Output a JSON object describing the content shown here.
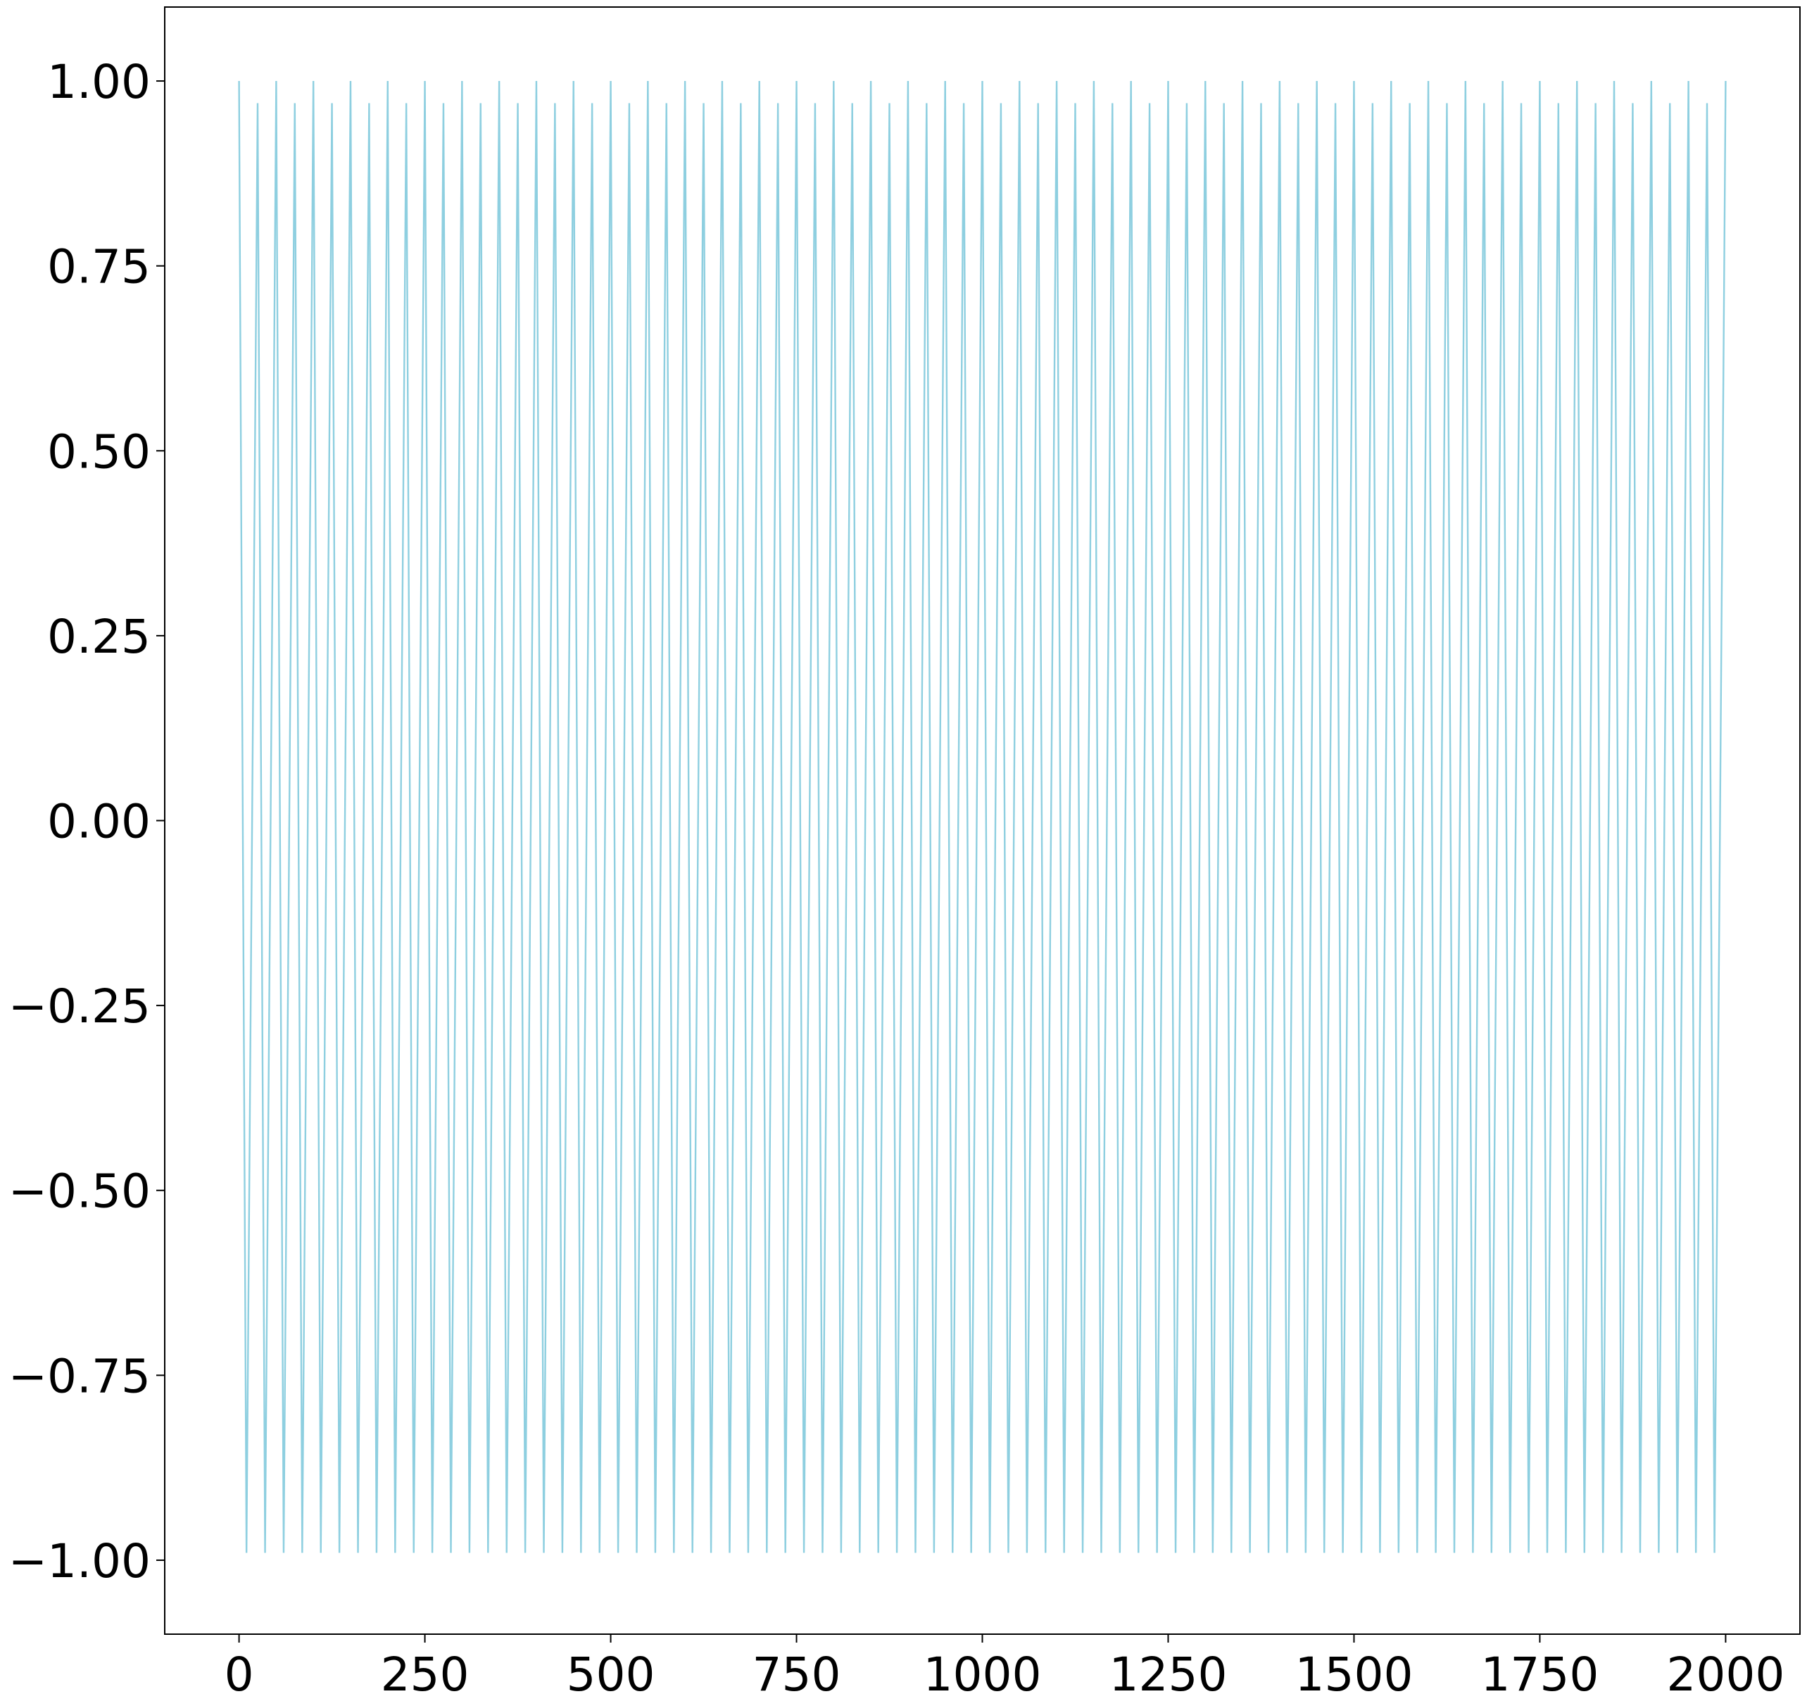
{
  "chart_data": {
    "type": "line",
    "title": "",
    "xlabel": "",
    "ylabel": "",
    "xlim": [
      -100,
      2100
    ],
    "ylim": [
      -1.1,
      1.1
    ],
    "grid": false,
    "legend": null,
    "x_ticks": [
      0,
      250,
      500,
      750,
      1000,
      1250,
      1500,
      1750,
      2000
    ],
    "x_tick_labels": [
      "0",
      "250",
      "500",
      "750",
      "1000",
      "1250",
      "1500",
      "1750",
      "2000"
    ],
    "y_ticks": [
      1.0,
      0.75,
      0.5,
      0.25,
      0.0,
      -0.25,
      -0.5,
      -0.75,
      -1.0
    ],
    "y_tick_labels": [
      "1.00",
      "0.75",
      "0.50",
      "0.25",
      "0.00",
      "−0.25",
      "−0.50",
      "−0.75",
      "−1.00"
    ],
    "series": [
      {
        "color": "#8ecfe0",
        "description": "oscillating signal with period ~25 samples",
        "x_start": 0,
        "x_end": 2000,
        "period": 25,
        "peak_high": 1.0,
        "peak_alt": 0.97,
        "trough": -0.99
      }
    ]
  }
}
